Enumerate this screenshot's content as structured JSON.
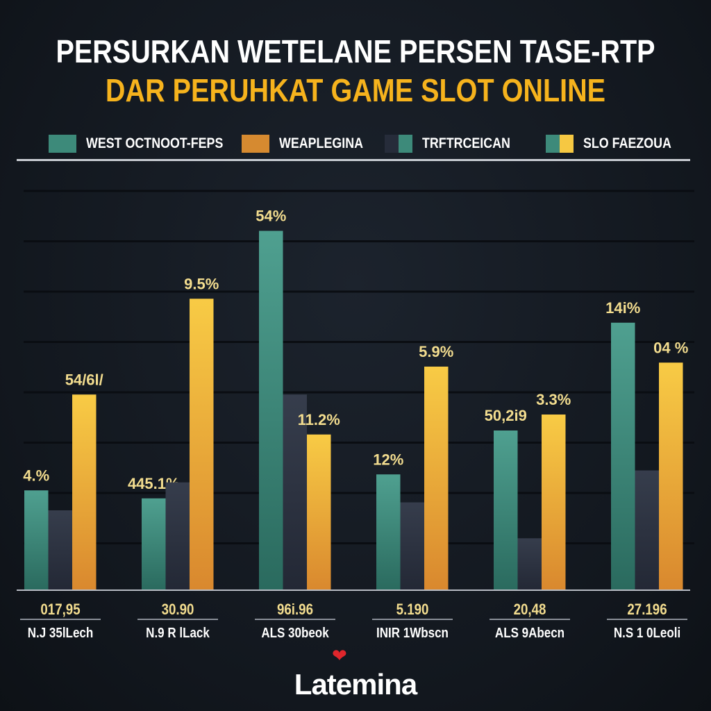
{
  "chart_data": {
    "type": "bar",
    "title": "PERSURKAN WETELANE PERSEN TASE-RTP",
    "subtitle": "DAR PERUHKAT GAME SLOT ONLINE",
    "legend": {
      "placement": "top",
      "entries": [
        {
          "label": "WEST OCTNOOT-FEPS",
          "colors": [
            "#3d8a7a"
          ]
        },
        {
          "label": "WEAPLEGINA",
          "colors": [
            "#d68a30"
          ]
        },
        {
          "label": "TRFTRCEICAN",
          "colors": [
            "#262c3a",
            "#3d8a7a"
          ]
        },
        {
          "label": "SLO FAEZOUA",
          "colors": [
            "#3d8a7a",
            "#f6c842"
          ]
        }
      ]
    },
    "categories": [
      "N.J 35lLech",
      "N.9 R lLack",
      "ALS 30beok",
      "INIR 1Wbscn",
      "ALS 9Abecn",
      "N.S 1 0Leoli"
    ],
    "category_values": [
      "017,95",
      "30.90",
      "96i.96",
      "5.190",
      "20,48",
      "27.196"
    ],
    "series": [
      {
        "color": "#3d8a7a",
        "values": [
          25,
          23,
          90,
          29,
          40,
          67
        ],
        "labels": [
          "4.%",
          "445.1%",
          "54%",
          "12%",
          "50,2i9",
          "14i%"
        ]
      },
      {
        "color": "#2e3442",
        "values": [
          20,
          27,
          49,
          22,
          13,
          30
        ],
        "labels": [
          "",
          "",
          "",
          "",
          "",
          ""
        ]
      },
      {
        "color": "#f6c842",
        "values": [
          49,
          73,
          39,
          56,
          44,
          57
        ],
        "labels": [
          "54/6l/",
          "9.5%",
          "11.2%",
          "5.9%",
          "3.3%",
          "04 %"
        ]
      }
    ],
    "ylim": [
      0,
      100
    ],
    "grid": true,
    "xlabel": "",
    "ylabel": ""
  },
  "brand": {
    "logo_text": "Latemina"
  }
}
